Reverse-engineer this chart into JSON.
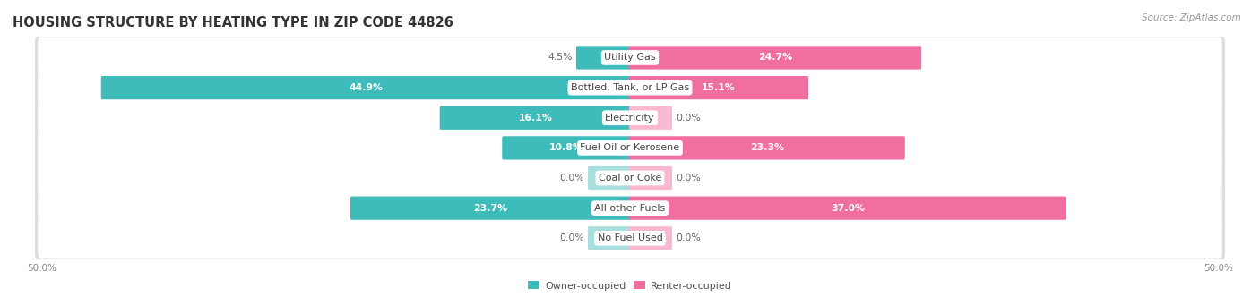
{
  "title": "HOUSING STRUCTURE BY HEATING TYPE IN ZIP CODE 44826",
  "source": "Source: ZipAtlas.com",
  "categories": [
    "Utility Gas",
    "Bottled, Tank, or LP Gas",
    "Electricity",
    "Fuel Oil or Kerosene",
    "Coal or Coke",
    "All other Fuels",
    "No Fuel Used"
  ],
  "owner_values": [
    4.5,
    44.9,
    16.1,
    10.8,
    0.0,
    23.7,
    0.0
  ],
  "renter_values": [
    24.7,
    15.1,
    0.0,
    23.3,
    0.0,
    37.0,
    0.0
  ],
  "owner_color": "#3ebcbc",
  "owner_color_light": "#a8dede",
  "renter_color": "#f06fa0",
  "renter_color_light": "#f9b8d0",
  "row_bg_color": "#f0f0f3",
  "row_border_color": "#dcdce8",
  "axis_limit": 50.0,
  "min_bar_val": 3.5,
  "title_fontsize": 10.5,
  "cat_fontsize": 8.0,
  "val_fontsize": 7.8,
  "tick_fontsize": 7.5,
  "source_fontsize": 7.5
}
